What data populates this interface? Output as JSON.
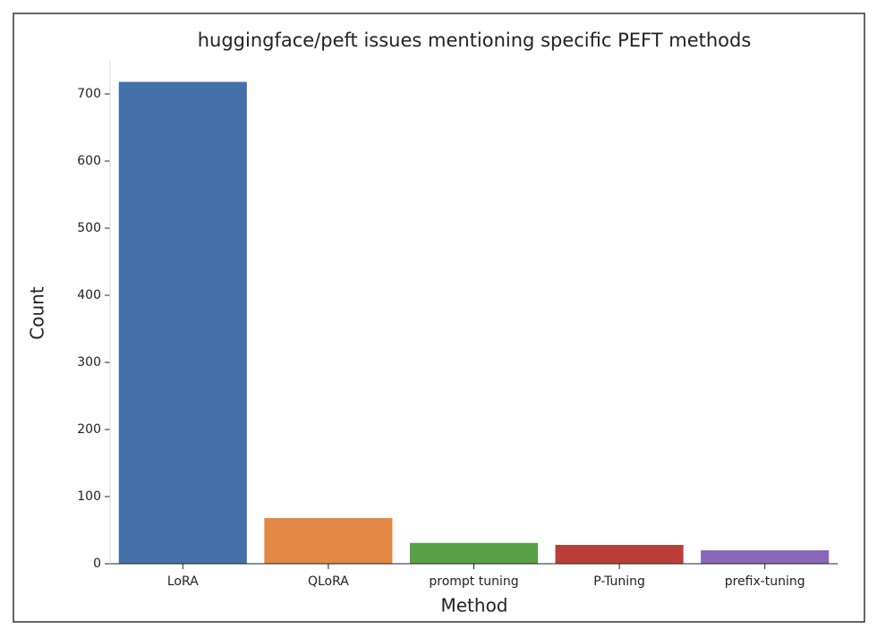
{
  "chart_data": {
    "type": "bar",
    "title": "huggingface/peft issues mentioning specific PEFT methods",
    "x_label": "Method",
    "y_label": "Count",
    "categories": [
      "LoRA",
      "QLoRA",
      "prompt tuning",
      "P-Tuning",
      "prefix-tuning"
    ],
    "values": [
      718,
      68,
      31,
      28,
      20
    ],
    "colors": [
      "#4471a8",
      "#e18945",
      "#58a046",
      "#bb3d37",
      "#8a68b8"
    ],
    "ylim": [
      0,
      750
    ],
    "yticks": [
      0,
      100,
      200,
      300,
      400,
      500,
      600,
      700
    ]
  }
}
